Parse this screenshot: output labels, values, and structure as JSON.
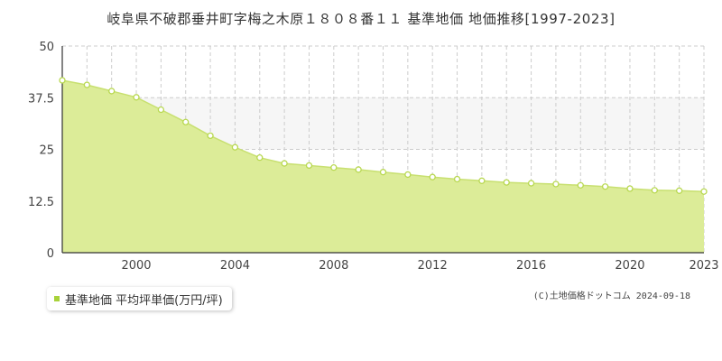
{
  "title": "岐阜県不破郡垂井町字梅之木原１８０８番１１ 基準地価 地価推移[1997-2023]",
  "legend": {
    "label": "基準地価 平均坪単価(万円/坪)"
  },
  "credit": "(C)土地価格ドットコム 2024-09-18",
  "colors": {
    "fill": "#dcec98",
    "line": "#c8e070",
    "marker_stroke": "#b8d850",
    "marker_fill": "#ffffff",
    "band": "#f6f6f6",
    "grid": "#cccccc"
  },
  "chart_data": {
    "type": "area",
    "title": "岐阜県不破郡垂井町字梅之木原１８０８番１１ 基準地価 地価推移[1997-2023]",
    "xlabel": "",
    "ylabel": "",
    "xlim": [
      1997,
      2023
    ],
    "ylim": [
      0,
      50
    ],
    "y_ticks": [
      "0",
      "12.5",
      "25",
      "37.5",
      "50"
    ],
    "y_tick_values": [
      0,
      12.5,
      25,
      37.5,
      50
    ],
    "x_ticks": [
      "2000",
      "2004",
      "2008",
      "2012",
      "2016",
      "2020",
      "2023"
    ],
    "x_tick_values": [
      2000,
      2004,
      2008,
      2012,
      2016,
      2020,
      2023
    ],
    "grid": true,
    "legend_position": "bottom-left",
    "series": [
      {
        "name": "基準地価 平均坪単価(万円/坪)",
        "x": [
          1997,
          1998,
          1999,
          2000,
          2001,
          2002,
          2003,
          2004,
          2005,
          2006,
          2007,
          2008,
          2009,
          2010,
          2011,
          2012,
          2013,
          2014,
          2015,
          2016,
          2017,
          2018,
          2019,
          2020,
          2021,
          2022,
          2023
        ],
        "values": [
          41.7,
          40.6,
          39.1,
          37.6,
          34.6,
          31.6,
          28.3,
          25.5,
          23.0,
          21.6,
          21.1,
          20.6,
          20.1,
          19.5,
          18.9,
          18.3,
          17.8,
          17.4,
          17.0,
          16.8,
          16.6,
          16.3,
          16.0,
          15.5,
          15.1,
          15.0,
          14.8
        ]
      }
    ]
  }
}
